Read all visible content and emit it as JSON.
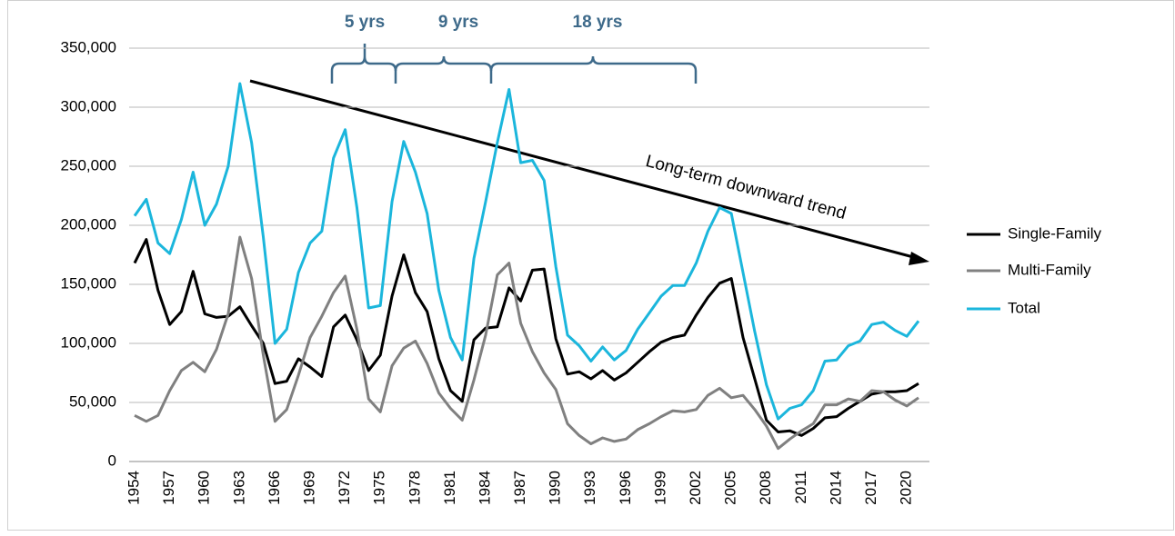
{
  "chart_data": {
    "type": "line",
    "categories": [
      "1954",
      null,
      null,
      "1957",
      null,
      null,
      "1960",
      null,
      null,
      "1963",
      null,
      null,
      "1966",
      null,
      null,
      "1969",
      null,
      null,
      "1972",
      null,
      null,
      "1975",
      null,
      null,
      "1978",
      null,
      null,
      "1981",
      null,
      null,
      "1984",
      null,
      null,
      "1987",
      null,
      null,
      "1990",
      null,
      null,
      "1993",
      null,
      null,
      "1996",
      null,
      null,
      "1999",
      null,
      null,
      "2002",
      null,
      null,
      "2005",
      null,
      null,
      "2008",
      null,
      null,
      "2011",
      null,
      null,
      "2014",
      null,
      null,
      "2017",
      null,
      null,
      "2020",
      null
    ],
    "series": [
      {
        "name": "Single-Family",
        "color": "#000000",
        "values": [
          168000,
          188000,
          145000,
          116000,
          127000,
          161000,
          125000,
          122000,
          123000,
          131000,
          115000,
          100000,
          66000,
          68000,
          87000,
          80000,
          72000,
          114000,
          124000,
          103000,
          77000,
          90000,
          140000,
          175000,
          143000,
          127000,
          87000,
          60000,
          51000,
          103000,
          113000,
          114000,
          147000,
          136000,
          162000,
          163000,
          104000,
          74000,
          76000,
          70000,
          77000,
          69000,
          75000,
          84000,
          93000,
          101000,
          105000,
          107000,
          124000,
          139000,
          151000,
          155000,
          105000,
          70000,
          35000,
          25000,
          26000,
          22000,
          28000,
          37000,
          38000,
          45000,
          51000,
          57000,
          59000,
          59000,
          60000,
          66000
        ]
      },
      {
        "name": "Multi-Family",
        "color": "#808080",
        "values": [
          39000,
          34000,
          39000,
          60000,
          77000,
          84000,
          76000,
          95000,
          125000,
          190000,
          155000,
          90000,
          34000,
          44000,
          73000,
          105000,
          123000,
          143000,
          157000,
          112000,
          53000,
          42000,
          81000,
          96000,
          102000,
          83000,
          58000,
          45000,
          35000,
          69000,
          107000,
          158000,
          168000,
          117000,
          93000,
          75000,
          61000,
          32000,
          22000,
          15000,
          20000,
          17000,
          19000,
          27000,
          32000,
          38000,
          43000,
          42000,
          44000,
          56000,
          62000,
          54000,
          56000,
          44000,
          30000,
          11000,
          19000,
          26000,
          32000,
          48000,
          48000,
          53000,
          51000,
          60000,
          59000,
          52000,
          47000,
          54000
        ]
      },
      {
        "name": "Total",
        "color": "#1bb6dc",
        "values": [
          208000,
          222000,
          185000,
          176000,
          205000,
          245000,
          200000,
          218000,
          250000,
          320000,
          270000,
          190000,
          100000,
          112000,
          160000,
          185000,
          195000,
          257000,
          281000,
          215000,
          130000,
          132000,
          220000,
          271000,
          245000,
          210000,
          145000,
          105000,
          86000,
          172000,
          220000,
          270000,
          315000,
          253000,
          255000,
          238000,
          165000,
          107000,
          98000,
          85000,
          97000,
          86000,
          94000,
          112000,
          126000,
          140000,
          149000,
          149000,
          168000,
          195000,
          215000,
          210000,
          160000,
          110000,
          65000,
          36000,
          45000,
          48000,
          60000,
          85000,
          86000,
          98000,
          102000,
          116000,
          118000,
          111000,
          106000,
          119000
        ]
      }
    ],
    "ylim": [
      0,
      350000
    ],
    "yticks": [
      0,
      {
        "value": 50000,
        "label": "50,000"
      },
      {
        "value": 100000,
        "label": "100,000"
      },
      {
        "value": 150000,
        "label": "150,000"
      },
      {
        "value": 200000,
        "label": "200,000"
      },
      {
        "value": 250000,
        "label": "250,000"
      },
      {
        "value": 300000,
        "label": "300,000"
      },
      {
        "value": 350000,
        "label": "350,000"
      }
    ],
    "grid": true,
    "legend": "right",
    "annotations": [
      "5 yrs",
      "9 yrs",
      "18 yrs",
      "Long-term downward trend"
    ]
  }
}
